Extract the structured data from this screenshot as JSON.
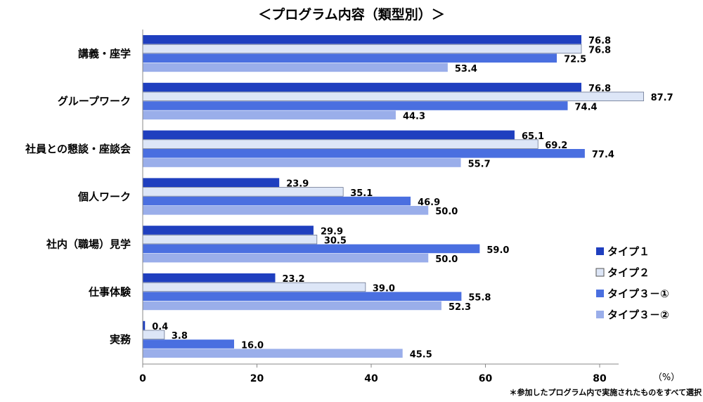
{
  "chart_data": {
    "type": "bar",
    "orientation": "horizontal",
    "title": "＜プログラム内容（類型別）＞",
    "categories": [
      "講義・座学",
      "グループワーク",
      "社員との懇談・座談会",
      "個人ワーク",
      "社内（職場）見学",
      "仕事体験",
      "実務"
    ],
    "series": [
      {
        "name": "タイプ１",
        "color": "#1f3fbf",
        "values": [
          76.8,
          76.8,
          65.1,
          23.9,
          29.9,
          23.2,
          0.4
        ]
      },
      {
        "name": "タイプ２",
        "color": "#dde6f7",
        "values": [
          76.8,
          87.7,
          69.2,
          35.1,
          30.5,
          39.0,
          3.8
        ]
      },
      {
        "name": "タイプ３－①",
        "color": "#4a6fe0",
        "values": [
          72.5,
          74.4,
          77.4,
          46.9,
          59.0,
          55.8,
          16.0
        ]
      },
      {
        "name": "タイプ３－②",
        "color": "#9aaeea",
        "values": [
          53.4,
          44.3,
          55.7,
          50.0,
          50.0,
          52.3,
          45.5
        ]
      }
    ],
    "xlim": [
      0,
      88
    ],
    "xticks": [
      0,
      20,
      40,
      60,
      80
    ],
    "xunit": "（%）",
    "legend_position": "right",
    "grid": false,
    "note": "＊参加したプログラム内で実施されたものをすべて選択"
  }
}
